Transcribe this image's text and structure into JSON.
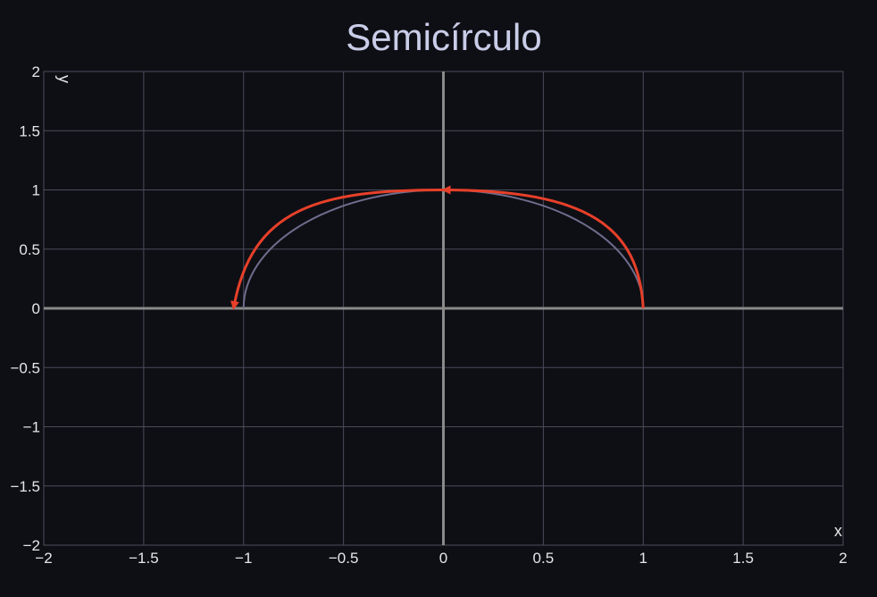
{
  "chart_data": {
    "type": "line",
    "title": "Semicírculo",
    "xlabel": "x",
    "ylabel": "y",
    "xlim": [
      -2,
      2
    ],
    "ylim": [
      -2,
      2
    ],
    "grid": true,
    "x_ticks": [
      -2,
      -1.5,
      -1,
      -0.5,
      0,
      0.5,
      1,
      1.5,
      2
    ],
    "y_ticks": [
      -2,
      -1.5,
      -1,
      -0.5,
      0,
      0.5,
      1,
      1.5,
      2
    ],
    "x_tick_labels": [
      "−2",
      "−1.5",
      "−1",
      "−0.5",
      "0",
      "0.5",
      "1",
      "1.5",
      "2"
    ],
    "y_tick_labels": [
      "−2",
      "−1.5",
      "−1",
      "−0.5",
      "0",
      "0.5",
      "1",
      "1.5",
      "2"
    ],
    "series": [
      {
        "kind": "curve",
        "color": "#6f6d8e",
        "x": [
          1,
          0.866,
          0.5,
          0,
          -0.5,
          -0.866,
          -1
        ],
        "y": [
          0,
          0.5,
          0.866,
          1,
          0.866,
          0.5,
          0
        ]
      },
      {
        "kind": "arrow",
        "color": "#e8402a",
        "x": [
          1,
          0
        ],
        "y": [
          0,
          1
        ]
      },
      {
        "kind": "arrow",
        "color": "#e8402a",
        "x": [
          0,
          -1.05
        ],
        "y": [
          1,
          0
        ]
      }
    ]
  },
  "colors": {
    "background": "#0e0f14",
    "grid": "#4a4c5c",
    "axis": "#8a8a8a",
    "title": "#c9cde8",
    "text": "#e6e6ea"
  }
}
